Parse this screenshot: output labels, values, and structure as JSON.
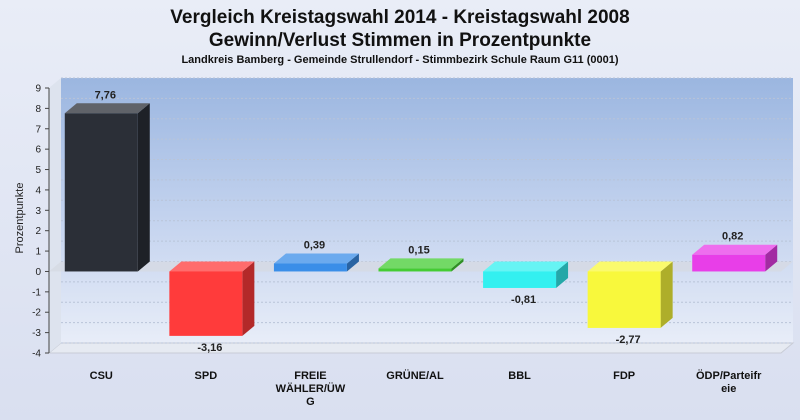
{
  "header": {
    "title_line1": "Vergleich Kreistagswahl 2014 - Kreistagswahl 2008",
    "title_line2": "Gewinn/Verlust Stimmen in Prozentpunkte",
    "subtitle": "Landkreis Bamberg - Gemeinde Strullendorf - Stimmbezirk Schule Raum G11 (0001)"
  },
  "chart_data": {
    "type": "bar",
    "title": "Vergleich Kreistagswahl 2014 - Kreistagswahl 2008 Gewinn/Verlust Stimmen in Prozentpunkte",
    "subtitle": "Landkreis Bamberg - Gemeinde Strullendorf - Stimmbezirk Schule Raum G11 (0001)",
    "ylabel": "Prozentpunkte",
    "xlabel": "",
    "ylim": [
      -4,
      9
    ],
    "yticks": [
      9,
      8,
      7,
      6,
      5,
      4,
      3,
      2,
      1,
      0,
      -1,
      -2,
      -3,
      -4
    ],
    "grid": true,
    "categories": [
      [
        "CSU"
      ],
      [
        "SPD"
      ],
      [
        "FREIE",
        "WÄHLER/ÜW",
        "G"
      ],
      [
        "GRÜNE/AL"
      ],
      [
        "BBL"
      ],
      [
        "FDP"
      ],
      [
        "ÖDP/Parteifr",
        "eie"
      ]
    ],
    "values": [
      7.76,
      -3.16,
      0.39,
      0.15,
      -0.81,
      -2.77,
      0.82
    ],
    "value_labels": [
      "7,76",
      "-3,16",
      "0,39",
      "0,15",
      "-0,81",
      "-2,77",
      "0,82"
    ],
    "colors": [
      "#2b2f37",
      "#ff3b3b",
      "#3a8ee8",
      "#44cc33",
      "#33f0f0",
      "#f8f83c",
      "#e83ee8"
    ]
  }
}
